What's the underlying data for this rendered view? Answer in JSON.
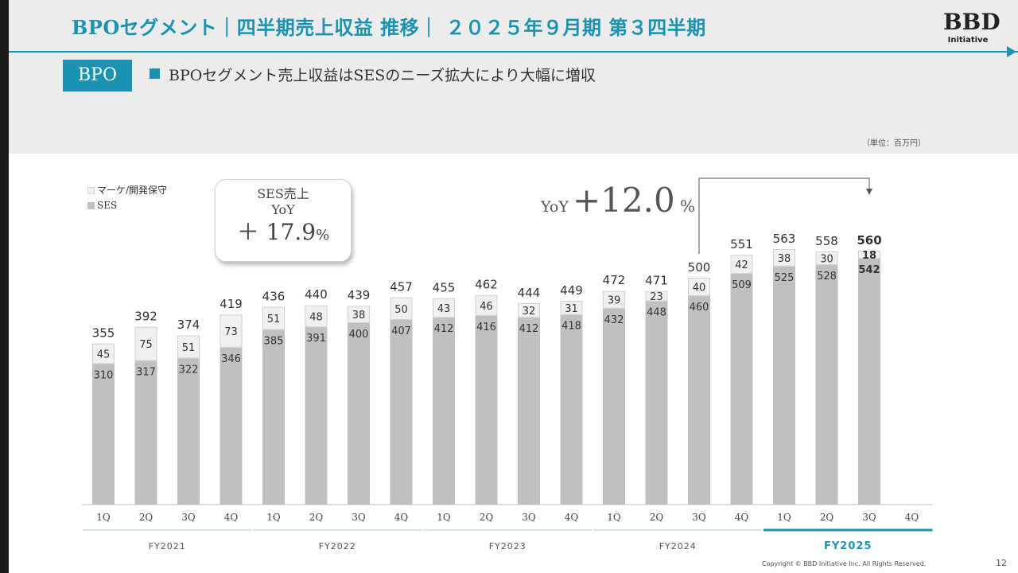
{
  "header": {
    "title": "BPOセグメント｜四半期売上収益 推移｜ ２０２５年９月期 第３四半期",
    "logo_text": "BBD",
    "logo_sub": "Initiative"
  },
  "badge": "BPO",
  "headline": "BPOセグメント売上収益はSESのニーズ拡大により大幅に増収",
  "unit_note": "（単位：百万円）",
  "legend": [
    {
      "label": "マーケ/開発保守",
      "color": "#f0f0f0"
    },
    {
      "label": "SES",
      "color": "#c0c0c0"
    }
  ],
  "callout": {
    "line1": "SES売上",
    "line2": "YoY",
    "value": "＋ 17.9",
    "pct": "%"
  },
  "yoy": {
    "prefix": "YoY",
    "value": "+12.0",
    "pct": " %"
  },
  "chart_data": {
    "type": "bar",
    "stacked": true,
    "categories": [
      "1Q",
      "2Q",
      "3Q",
      "4Q",
      "1Q",
      "2Q",
      "3Q",
      "4Q",
      "1Q",
      "2Q",
      "3Q",
      "4Q",
      "1Q",
      "2Q",
      "3Q",
      "4Q",
      "1Q",
      "2Q",
      "3Q",
      "4Q"
    ],
    "groups": [
      {
        "label": "FY2021",
        "start": 0,
        "end": 3
      },
      {
        "label": "FY2022",
        "start": 4,
        "end": 7
      },
      {
        "label": "FY2023",
        "start": 8,
        "end": 11
      },
      {
        "label": "FY2024",
        "start": 12,
        "end": 15
      },
      {
        "label": "FY2025",
        "start": 16,
        "end": 19,
        "highlight": true
      }
    ],
    "series": [
      {
        "name": "SES",
        "color": "#c0c0c0",
        "values": [
          310,
          317,
          322,
          346,
          385,
          391,
          400,
          407,
          412,
          416,
          412,
          418,
          432,
          448,
          460,
          509,
          525,
          528,
          542,
          null
        ]
      },
      {
        "name": "マーケ/開発保守",
        "color": "#f0f0f0",
        "values": [
          45,
          75,
          51,
          73,
          51,
          48,
          38,
          50,
          43,
          46,
          32,
          31,
          39,
          23,
          40,
          42,
          38,
          30,
          18,
          null
        ]
      }
    ],
    "totals": [
      355,
      392,
      374,
      419,
      436,
      440,
      439,
      457,
      455,
      462,
      444,
      449,
      472,
      471,
      500,
      551,
      563,
      558,
      560,
      null
    ],
    "highlight_index": 18,
    "ylim": [
      0,
      620
    ],
    "accent_color": "#1a92b0"
  },
  "footer": {
    "copyright": "Copyright © BBD Initiative Inc. All Rights Reserved.",
    "page": "12"
  }
}
